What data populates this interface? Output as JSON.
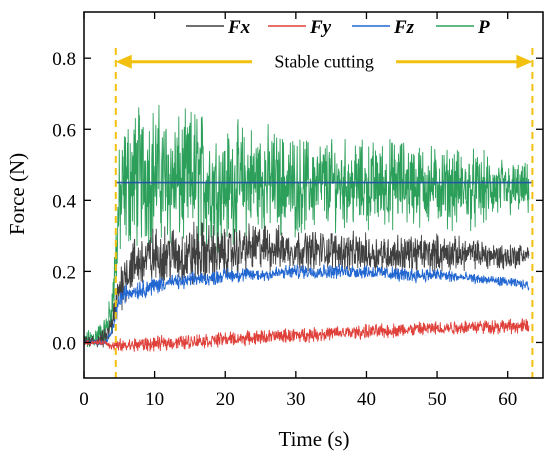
{
  "chart_data": {
    "type": "line",
    "xlabel": "Time (s)",
    "ylabel": "Force (N)",
    "xlim": [
      0,
      65
    ],
    "ylim": [
      -0.1,
      0.93
    ],
    "x_ticks": [
      0,
      10,
      20,
      30,
      40,
      50,
      60
    ],
    "y_ticks": [
      0.0,
      0.2,
      0.4,
      0.6,
      0.8
    ],
    "x_tick_labels": [
      "0",
      "10",
      "20",
      "30",
      "40",
      "50",
      "60"
    ],
    "y_tick_labels": [
      "0.0",
      "0.2",
      "0.4",
      "0.6",
      "0.8"
    ],
    "grid": false,
    "legend_placement": "top",
    "series": [
      {
        "name": "P",
        "color": "#2ca05a",
        "x": [
          0,
          3,
          4,
          5,
          6,
          8,
          10,
          12,
          14,
          16,
          18,
          20,
          22,
          25,
          30,
          35,
          40,
          45,
          50,
          55,
          60,
          63
        ],
        "y": [
          0.0,
          0.03,
          0.1,
          0.38,
          0.45,
          0.47,
          0.48,
          0.46,
          0.45,
          0.47,
          0.44,
          0.44,
          0.45,
          0.46,
          0.44,
          0.45,
          0.44,
          0.45,
          0.44,
          0.43,
          0.43,
          0.43
        ],
        "spread": [
          0.02,
          0.03,
          0.05,
          0.12,
          0.14,
          0.15,
          0.14,
          0.14,
          0.13,
          0.15,
          0.13,
          0.12,
          0.12,
          0.11,
          0.1,
          0.09,
          0.09,
          0.09,
          0.08,
          0.08,
          0.06,
          0.05
        ]
      },
      {
        "name": "Fx",
        "color": "#404040",
        "x": [
          0,
          3,
          4,
          5,
          6,
          8,
          10,
          12,
          14,
          16,
          18,
          20,
          22,
          25,
          30,
          35,
          40,
          45,
          50,
          55,
          60,
          63
        ],
        "y": [
          0.0,
          0.01,
          0.05,
          0.15,
          0.2,
          0.23,
          0.24,
          0.25,
          0.24,
          0.25,
          0.25,
          0.25,
          0.26,
          0.27,
          0.26,
          0.26,
          0.25,
          0.25,
          0.25,
          0.25,
          0.24,
          0.25
        ],
        "spread": [
          0.01,
          0.02,
          0.03,
          0.05,
          0.06,
          0.06,
          0.06,
          0.06,
          0.06,
          0.07,
          0.06,
          0.05,
          0.05,
          0.05,
          0.04,
          0.04,
          0.04,
          0.04,
          0.04,
          0.03,
          0.03,
          0.02
        ]
      },
      {
        "name": "Fz",
        "color": "#2166d1",
        "x": [
          0,
          3,
          4,
          5,
          6,
          8,
          10,
          12,
          14,
          16,
          18,
          20,
          22,
          25,
          30,
          35,
          40,
          45,
          50,
          55,
          60,
          63
        ],
        "y": [
          0.0,
          0.0,
          0.03,
          0.12,
          0.14,
          0.15,
          0.16,
          0.17,
          0.17,
          0.18,
          0.18,
          0.19,
          0.19,
          0.19,
          0.2,
          0.2,
          0.2,
          0.19,
          0.19,
          0.18,
          0.17,
          0.16
        ],
        "spread": [
          0.005,
          0.005,
          0.01,
          0.02,
          0.02,
          0.02,
          0.02,
          0.015,
          0.015,
          0.015,
          0.015,
          0.015,
          0.015,
          0.015,
          0.015,
          0.015,
          0.015,
          0.015,
          0.015,
          0.01,
          0.01,
          0.01
        ]
      },
      {
        "name": "Fy",
        "color": "#e0403a",
        "x": [
          0,
          3,
          4,
          5,
          6,
          8,
          10,
          12,
          14,
          16,
          18,
          20,
          22,
          25,
          30,
          35,
          40,
          45,
          50,
          55,
          60,
          63
        ],
        "y": [
          0.0,
          0.0,
          -0.01,
          -0.01,
          -0.01,
          -0.005,
          -0.005,
          0.0,
          0.0,
          0.005,
          0.005,
          0.01,
          0.01,
          0.015,
          0.02,
          0.025,
          0.03,
          0.035,
          0.04,
          0.045,
          0.045,
          0.045
        ],
        "spread": [
          0.005,
          0.005,
          0.01,
          0.015,
          0.015,
          0.015,
          0.015,
          0.015,
          0.015,
          0.015,
          0.015,
          0.015,
          0.015,
          0.015,
          0.015,
          0.015,
          0.015,
          0.015,
          0.015,
          0.015,
          0.015,
          0.015
        ]
      }
    ],
    "reference_line": {
      "color": "#2655a5",
      "y": 0.45,
      "x_start": 4.5,
      "x_end": 63.5
    },
    "annotation": {
      "text": "Stable cutting",
      "x_start": 4.5,
      "x_end": 63.5,
      "arrow_y": 0.79,
      "color": "#f2c10f"
    }
  }
}
